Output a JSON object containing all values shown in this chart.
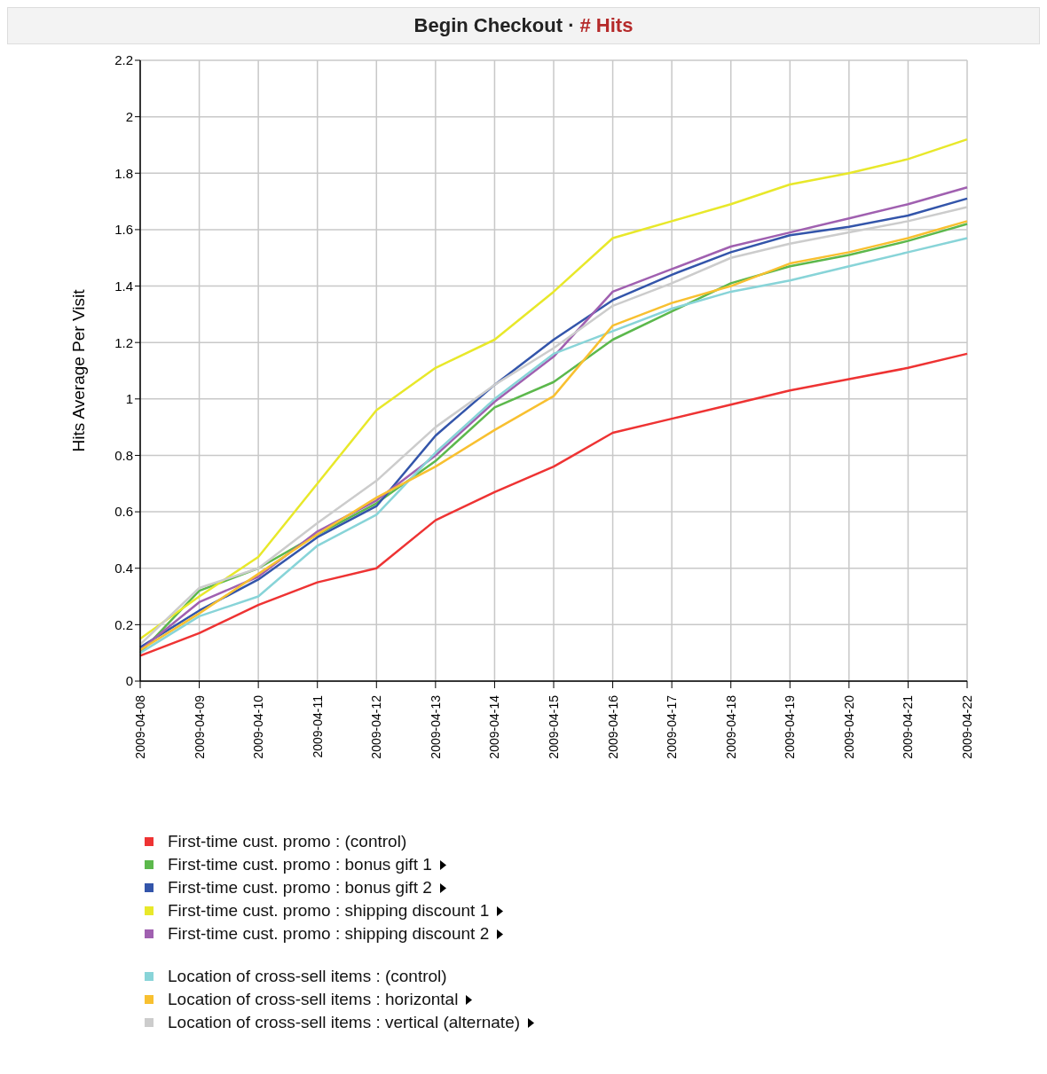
{
  "chart_data": {
    "type": "line",
    "title": "Begin Checkout ·",
    "subtitle": "# Hits",
    "ylabel": "Hits Average Per Visit",
    "categories": [
      "2009-04-08",
      "2009-04-09",
      "2009-04-10",
      "2009-04-11",
      "2009-04-12",
      "2009-04-13",
      "2009-04-14",
      "2009-04-15",
      "2009-04-16",
      "2009-04-17",
      "2009-04-18",
      "2009-04-19",
      "2009-04-20",
      "2009-04-21",
      "2009-04-22"
    ],
    "ylim": [
      0,
      2.2
    ],
    "yticks": [
      0,
      0.2,
      0.4,
      0.6,
      0.8,
      1,
      1.2,
      1.4,
      1.6,
      1.8,
      2,
      2.2
    ],
    "grid": true,
    "legend": "bottom",
    "marker": "none",
    "line_style": "solid",
    "series": [
      {
        "name": "First-time cust. promo : (control)",
        "color": "#ee3333",
        "values": [
          0.09,
          0.17,
          0.27,
          0.35,
          0.4,
          0.57,
          0.67,
          0.76,
          0.88,
          0.93,
          0.98,
          1.03,
          1.07,
          1.11,
          1.16
        ]
      },
      {
        "name": "First-time cust. promo : bonus gift 1",
        "color": "#5cb84c",
        "values": [
          0.1,
          0.32,
          0.4,
          0.52,
          0.63,
          0.78,
          0.97,
          1.06,
          1.21,
          1.31,
          1.41,
          1.47,
          1.51,
          1.56,
          1.62
        ]
      },
      {
        "name": "First-time cust. promo : bonus gift 2",
        "color": "#3355aa",
        "values": [
          0.12,
          0.25,
          0.36,
          0.51,
          0.62,
          0.87,
          1.05,
          1.21,
          1.35,
          1.44,
          1.52,
          1.58,
          1.61,
          1.65,
          1.71
        ]
      },
      {
        "name": "First-time cust. promo : shipping discount 1",
        "color": "#e8e82a",
        "values": [
          0.15,
          0.3,
          0.44,
          0.7,
          0.96,
          1.11,
          1.21,
          1.38,
          1.57,
          1.63,
          1.69,
          1.76,
          1.8,
          1.85,
          1.92
        ]
      },
      {
        "name": "First-time cust. promo : shipping discount 2",
        "color": "#a060b0",
        "values": [
          0.11,
          0.28,
          0.37,
          0.53,
          0.64,
          0.8,
          0.99,
          1.15,
          1.38,
          1.46,
          1.54,
          1.59,
          1.64,
          1.69,
          1.75
        ]
      },
      {
        "name": "Location of cross-sell items : (control)",
        "color": "#88d4d8",
        "values": [
          0.1,
          0.23,
          0.3,
          0.48,
          0.59,
          0.81,
          1.0,
          1.16,
          1.24,
          1.32,
          1.38,
          1.42,
          1.47,
          1.52,
          1.57
        ]
      },
      {
        "name": "Location of cross-sell items : horizontal",
        "color": "#f8c030",
        "values": [
          0.11,
          0.24,
          0.38,
          0.52,
          0.65,
          0.76,
          0.89,
          1.01,
          1.26,
          1.34,
          1.4,
          1.48,
          1.52,
          1.57,
          1.63
        ]
      },
      {
        "name": "Location of cross-sell items : vertical (alternate)",
        "color": "#cccccc",
        "values": [
          0.13,
          0.33,
          0.4,
          0.56,
          0.71,
          0.9,
          1.05,
          1.18,
          1.33,
          1.41,
          1.5,
          1.55,
          1.59,
          1.63,
          1.68
        ]
      }
    ]
  }
}
